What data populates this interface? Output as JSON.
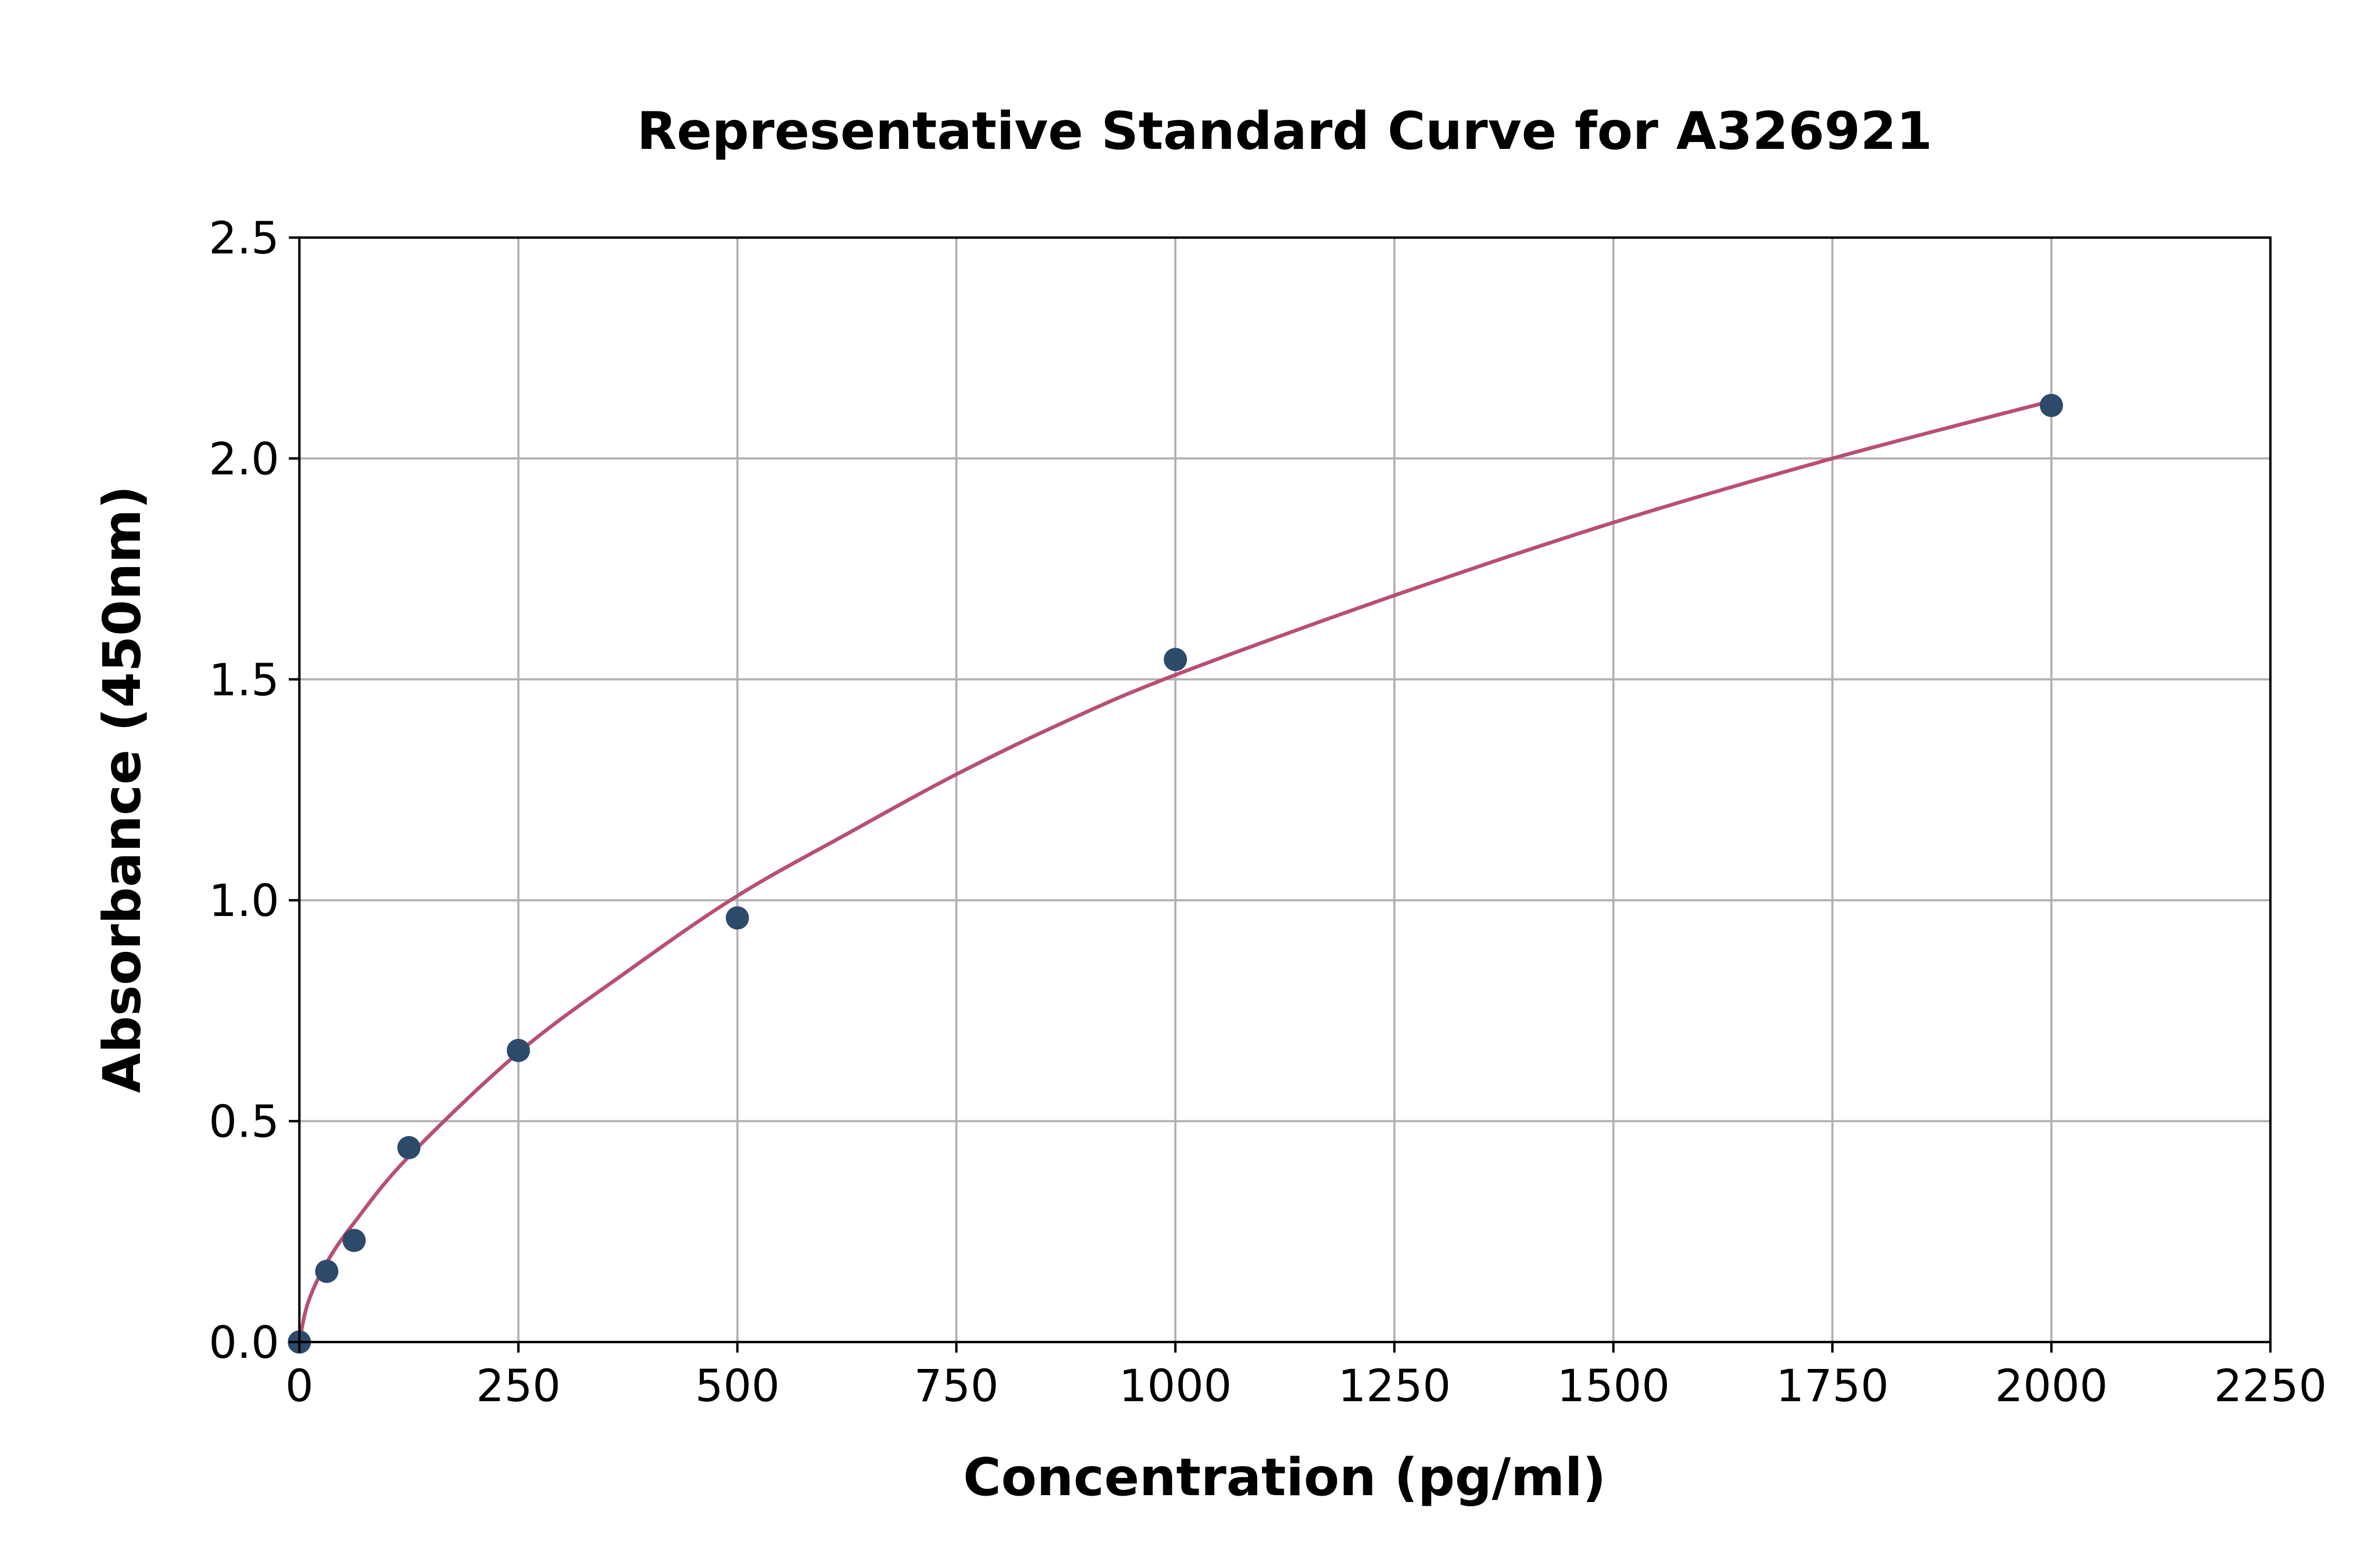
{
  "chart_data": {
    "type": "scatter",
    "title": "Representative Standard Curve for A326921",
    "xlabel": "Concentration (pg/ml)",
    "ylabel": "Absorbance (450nm)",
    "xlim": [
      0,
      2250
    ],
    "ylim": [
      0,
      2.5
    ],
    "x_ticks": [
      "0",
      "250",
      "500",
      "750",
      "1000",
      "1250",
      "1500",
      "1750",
      "2000",
      "2250"
    ],
    "y_ticks": [
      "0.0",
      "0.5",
      "1.0",
      "1.5",
      "2.0",
      "2.5"
    ],
    "grid": true,
    "series": [
      {
        "type": "scatter",
        "color": "#2e4a6b",
        "x": [
          0,
          31.25,
          62.5,
          125,
          250,
          500,
          1000,
          2000
        ],
        "y": [
          0.0,
          0.16,
          0.23,
          0.44,
          0.66,
          0.96,
          1.545,
          2.12
        ]
      },
      {
        "type": "line",
        "color": "#b84f73",
        "x": [
          0,
          10,
          31.25,
          62.5,
          125,
          250,
          375,
          500,
          625,
          750,
          875,
          1000,
          1250,
          1500,
          1750,
          2000
        ],
        "y": [
          0.0,
          0.09,
          0.18,
          0.27,
          0.42,
          0.655,
          0.84,
          1.01,
          1.15,
          1.285,
          1.405,
          1.51,
          1.69,
          1.855,
          2.0,
          2.13
        ]
      }
    ]
  }
}
